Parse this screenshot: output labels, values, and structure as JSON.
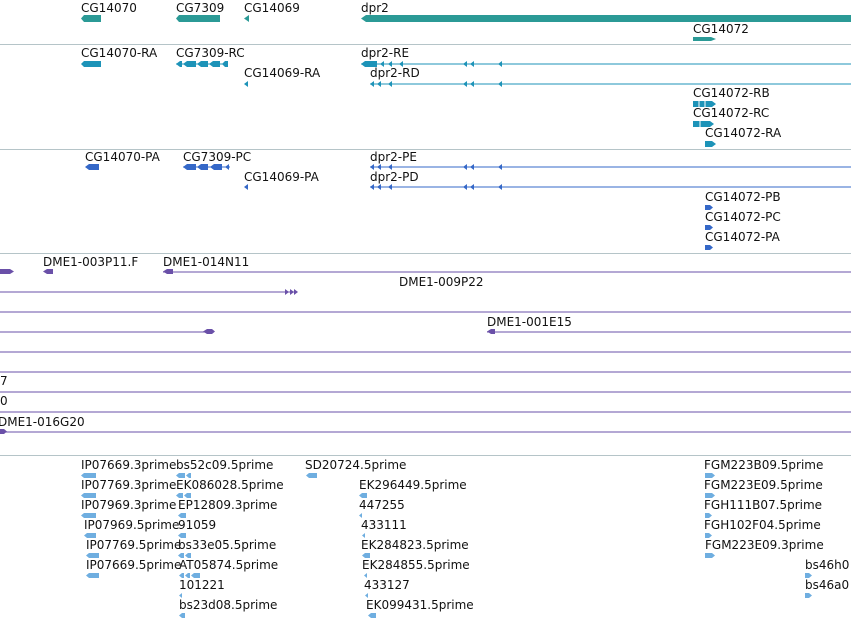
{
  "colors": {
    "gene": "#2b9a96",
    "transcript": "#1d93b8",
    "protein": "#3568c8",
    "clone": "#6a50a8",
    "est": "#6faee0",
    "separator": "#b5c4c8"
  },
  "genes": [
    {
      "id": "CG14070",
      "label": "CG14070"
    },
    {
      "id": "CG7309",
      "label": "CG7309"
    },
    {
      "id": "CG14069",
      "label": "CG14069"
    },
    {
      "id": "dpr2",
      "label": "dpr2"
    },
    {
      "id": "CG14072",
      "label": "CG14072"
    }
  ],
  "transcripts": [
    {
      "id": "CG14070-RA",
      "label": "CG14070-RA"
    },
    {
      "id": "CG7309-RC",
      "label": "CG7309-RC"
    },
    {
      "id": "CG14069-RA",
      "label": "CG14069-RA"
    },
    {
      "id": "dpr2-RE",
      "label": "dpr2-RE"
    },
    {
      "id": "dpr2-RD",
      "label": "dpr2-RD"
    },
    {
      "id": "CG14072-RB",
      "label": "CG14072-RB"
    },
    {
      "id": "CG14072-RC",
      "label": "CG14072-RC"
    },
    {
      "id": "CG14072-RA",
      "label": "CG14072-RA"
    }
  ],
  "proteins": [
    {
      "id": "CG14070-PA",
      "label": "CG14070-PA"
    },
    {
      "id": "CG7309-PC",
      "label": "CG7309-PC"
    },
    {
      "id": "CG14069-PA",
      "label": "CG14069-PA"
    },
    {
      "id": "dpr2-PE",
      "label": "dpr2-PE"
    },
    {
      "id": "dpr2-PD",
      "label": "dpr2-PD"
    },
    {
      "id": "CG14072-PB",
      "label": "CG14072-PB"
    },
    {
      "id": "CG14072-PC",
      "label": "CG14072-PC"
    },
    {
      "id": "CG14072-PA",
      "label": "CG14072-PA"
    }
  ],
  "clones": [
    {
      "id": "DME1-003P11.F",
      "label": "DME1-003P11.F"
    },
    {
      "id": "DME1-014N11",
      "label": "DME1-014N11"
    },
    {
      "id": "DME1-009P22",
      "label": "DME1-009P22"
    },
    {
      "id": "DME1-001E15",
      "label": "DME1-001E15"
    },
    {
      "id": "clone-7",
      "label": "7"
    },
    {
      "id": "clone-0",
      "label": "0"
    },
    {
      "id": "DME1-016G20",
      "label": "DME1-016G20"
    }
  ],
  "ests": [
    {
      "id": "e1",
      "label": "IP07669.3prime"
    },
    {
      "id": "e2",
      "label": "bs52c09.5prime"
    },
    {
      "id": "e3",
      "label": "SD20724.5prime"
    },
    {
      "id": "e4",
      "label": "FGM223B09.5prime"
    },
    {
      "id": "e5",
      "label": "IP07769.3prime"
    },
    {
      "id": "e6",
      "label": "EK086028.5prime"
    },
    {
      "id": "e7",
      "label": "EK296449.5prime"
    },
    {
      "id": "e8",
      "label": "FGM223E09.5prime"
    },
    {
      "id": "e9",
      "label": "IP07969.3prime"
    },
    {
      "id": "e10",
      "label": "EP12809.3prime"
    },
    {
      "id": "e11",
      "label": "447255"
    },
    {
      "id": "e12",
      "label": "FGH111B07.5prime"
    },
    {
      "id": "e13",
      "label": "IP07969.5prime"
    },
    {
      "id": "e14",
      "label": "91059"
    },
    {
      "id": "e15",
      "label": "433111"
    },
    {
      "id": "e16",
      "label": "FGH102F04.5prime"
    },
    {
      "id": "e17",
      "label": "IP07769.5prime"
    },
    {
      "id": "e18",
      "label": "bs33e05.5prime"
    },
    {
      "id": "e19",
      "label": "EK284823.5prime"
    },
    {
      "id": "e20",
      "label": "FGM223E09.3prime"
    },
    {
      "id": "e21",
      "label": "IP07669.5prime"
    },
    {
      "id": "e22",
      "label": "AT05874.5prime"
    },
    {
      "id": "e23",
      "label": "EK284855.5prime"
    },
    {
      "id": "e24",
      "label": "bs46h0"
    },
    {
      "id": "e25",
      "label": "101221"
    },
    {
      "id": "e26",
      "label": "433127"
    },
    {
      "id": "e27",
      "label": "bs46a0"
    },
    {
      "id": "e28",
      "label": "bs23d08.5prime"
    },
    {
      "id": "e29",
      "label": "EK099431.5prime"
    }
  ]
}
